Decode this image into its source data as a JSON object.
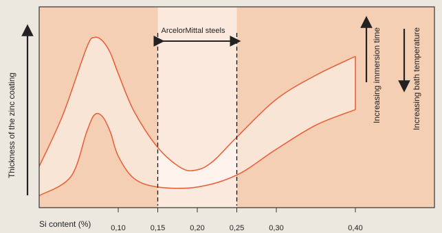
{
  "chart_data": {
    "type": "area",
    "ylabel": "Thickness of the zinc coating",
    "xlabel": "Si content (%)",
    "x_ticks": [
      {
        "value": 0.1,
        "label": "0,10"
      },
      {
        "value": 0.15,
        "label": "0,15"
      },
      {
        "value": 0.2,
        "label": "0,20"
      },
      {
        "value": 0.25,
        "label": "0,25"
      },
      {
        "value": 0.3,
        "label": "0,30"
      },
      {
        "value": 0.4,
        "label": "0,40"
      }
    ],
    "xlim": [
      0.0,
      0.45
    ],
    "ylim": [
      0,
      1
    ],
    "highlight_band": {
      "x_start": 0.15,
      "x_end": 0.25,
      "label": "ArcelorMittal steels"
    },
    "band_upper": {
      "x": [
        0.0,
        0.03,
        0.06,
        0.07,
        0.08,
        0.09,
        0.1,
        0.12,
        0.15,
        0.18,
        0.2,
        0.22,
        0.25,
        0.3,
        0.35,
        0.4
      ],
      "y": [
        0.18,
        0.48,
        0.87,
        0.93,
        0.91,
        0.84,
        0.72,
        0.5,
        0.29,
        0.17,
        0.16,
        0.21,
        0.35,
        0.57,
        0.71,
        0.82
      ]
    },
    "band_lower": {
      "x": [
        0.0,
        0.04,
        0.06,
        0.07,
        0.08,
        0.09,
        0.1,
        0.12,
        0.15,
        0.2,
        0.25,
        0.3,
        0.35,
        0.4
      ],
      "y": [
        0.01,
        0.12,
        0.38,
        0.48,
        0.47,
        0.38,
        0.24,
        0.11,
        0.06,
        0.06,
        0.13,
        0.28,
        0.42,
        0.51
      ]
    },
    "annotations": {
      "immersion": "Increasing immersion time",
      "temperature": "Increasing bath temperature"
    },
    "colors": {
      "outer": "#f4cfb4",
      "band_highlight": "#fbe9dd",
      "curve": "#e8623e",
      "frame": "#333333",
      "arrow": "#222222"
    }
  }
}
